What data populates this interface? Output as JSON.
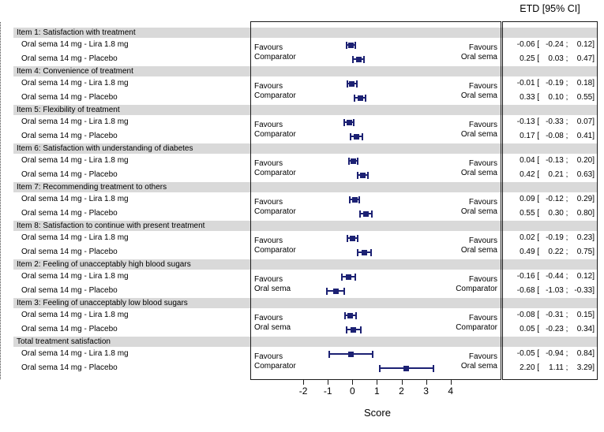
{
  "header": {
    "etd_label": "ETD [95% CI]"
  },
  "axis": {
    "label": "Score"
  },
  "chart_data": {
    "type": "forest",
    "xlabel": "Score",
    "value_column_header": "ETD [95% CI]",
    "x_ticks": [
      -2,
      -1,
      0,
      1,
      2,
      3,
      4
    ],
    "x_range": [
      -4.17,
      6.09
    ],
    "reference_line": 0,
    "marker_color": "#1c2173",
    "band_color": "#d9d9d9",
    "row_label_lira": "Oral sema 14 mg - Lira 1.8 mg",
    "row_label_placebo": "Oral sema 14 mg - Placebo",
    "sections": [
      {
        "header": "Item 1: Satisfaction with treatment",
        "favours_left": [
          "Favours",
          "Comparator"
        ],
        "favours_right": [
          "Favours",
          "Oral sema"
        ],
        "rows": [
          {
            "label": "Oral sema 14 mg - Lira 1.8 mg",
            "est": -0.06,
            "lo": -0.24,
            "hi": 0.12
          },
          {
            "label": "Oral sema 14 mg - Placebo",
            "est": 0.25,
            "lo": 0.03,
            "hi": 0.47
          }
        ]
      },
      {
        "header": "Item 4: Convenience of treatment",
        "favours_left": [
          "Favours",
          "Comparator"
        ],
        "favours_right": [
          "Favours",
          "Oral sema"
        ],
        "rows": [
          {
            "label": "Oral sema 14 mg - Lira 1.8 mg",
            "est": -0.01,
            "lo": -0.19,
            "hi": 0.18
          },
          {
            "label": "Oral sema 14 mg - Placebo",
            "est": 0.33,
            "lo": 0.1,
            "hi": 0.55
          }
        ]
      },
      {
        "header": "Item 5: Flexibility of treatment",
        "favours_left": [
          "Favours",
          "Comparator"
        ],
        "favours_right": [
          "Favours",
          "Oral sema"
        ],
        "rows": [
          {
            "label": "Oral sema 14 mg - Lira 1.8 mg",
            "est": -0.13,
            "lo": -0.33,
            "hi": 0.07
          },
          {
            "label": "Oral sema 14 mg - Placebo",
            "est": 0.17,
            "lo": -0.08,
            "hi": 0.41
          }
        ]
      },
      {
        "header": "Item 6: Satisfaction with understanding of diabetes",
        "favours_left": [
          "Favours",
          "Comparator"
        ],
        "favours_right": [
          "Favours",
          "Oral sema"
        ],
        "rows": [
          {
            "label": "Oral sema 14 mg - Lira 1.8 mg",
            "est": 0.04,
            "lo": -0.13,
            "hi": 0.2
          },
          {
            "label": "Oral sema 14 mg - Placebo",
            "est": 0.42,
            "lo": 0.21,
            "hi": 0.63
          }
        ]
      },
      {
        "header": "Item 7: Recommending treatment to others",
        "favours_left": [
          "Favours",
          "Comparator"
        ],
        "favours_right": [
          "Favours",
          "Oral sema"
        ],
        "rows": [
          {
            "label": "Oral sema 14 mg - Lira 1.8 mg",
            "est": 0.09,
            "lo": -0.12,
            "hi": 0.29
          },
          {
            "label": "Oral sema 14 mg - Placebo",
            "est": 0.55,
            "lo": 0.3,
            "hi": 0.8
          }
        ]
      },
      {
        "header": "Item 8: Satisfaction to continue with present treatment",
        "favours_left": [
          "Favours",
          "Comparator"
        ],
        "favours_right": [
          "Favours",
          "Oral sema"
        ],
        "rows": [
          {
            "label": "Oral sema 14 mg - Lira 1.8 mg",
            "est": 0.02,
            "lo": -0.19,
            "hi": 0.23
          },
          {
            "label": "Oral sema 14 mg - Placebo",
            "est": 0.49,
            "lo": 0.22,
            "hi": 0.75
          }
        ]
      },
      {
        "header": "Item 2: Feeling of unacceptably high blood sugars",
        "favours_left": [
          "Favours",
          "Oral sema"
        ],
        "favours_right": [
          "Favours",
          "Comparator"
        ],
        "rows": [
          {
            "label": "Oral sema 14 mg - Lira 1.8 mg",
            "est": -0.16,
            "lo": -0.44,
            "hi": 0.12
          },
          {
            "label": "Oral sema 14 mg - Placebo",
            "est": -0.68,
            "lo": -1.03,
            "hi": -0.33
          }
        ]
      },
      {
        "header": "Item 3: Feeling of unacceptably low blood sugars",
        "favours_left": [
          "Favours",
          "Oral sema"
        ],
        "favours_right": [
          "Favours",
          "Comparator"
        ],
        "rows": [
          {
            "label": "Oral sema 14 mg - Lira 1.8 mg",
            "est": -0.08,
            "lo": -0.31,
            "hi": 0.15
          },
          {
            "label": "Oral sema 14 mg - Placebo",
            "est": 0.05,
            "lo": -0.23,
            "hi": 0.34
          }
        ]
      },
      {
        "header": "Total treatment satisfaction",
        "favours_left": [
          "Favours",
          "Comparator"
        ],
        "favours_right": [
          "Favours",
          "Oral sema"
        ],
        "rows": [
          {
            "label": "Oral sema 14 mg - Lira 1.8 mg",
            "est": -0.05,
            "lo": -0.94,
            "hi": 0.84
          },
          {
            "label": "Oral sema 14 mg - Placebo",
            "est": 2.2,
            "lo": 1.11,
            "hi": 3.29
          }
        ]
      }
    ]
  }
}
